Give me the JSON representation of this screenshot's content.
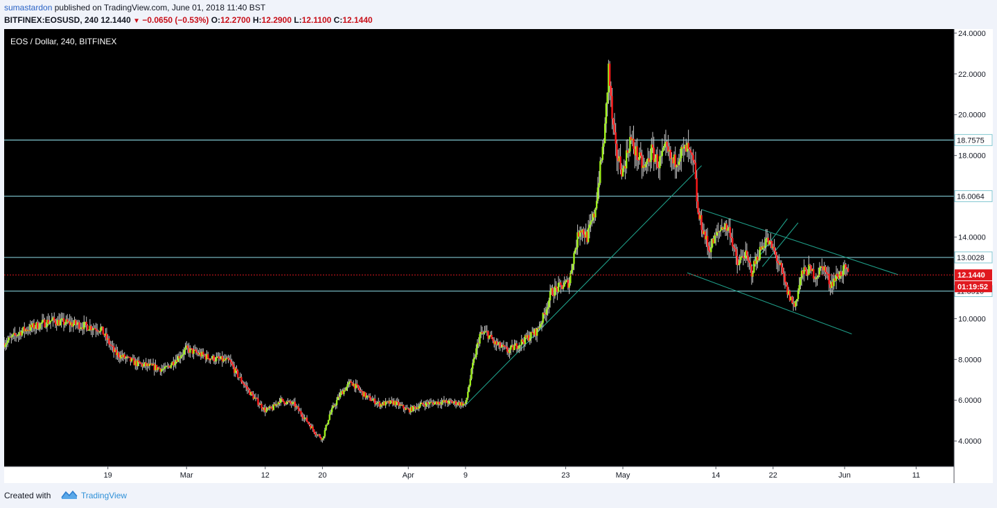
{
  "header": {
    "author": "sumastardon",
    "published_text": "published on TradingView.com, June 01, 2018 11:40 BST",
    "symbol": "BITFINEX:EOSUSD, 240",
    "last": "12.1440",
    "change": "−0.0650 (−0.53%)",
    "open_label": "O:",
    "open": "12.2700",
    "high_label": "H:",
    "high": "12.2900",
    "low_label": "L:",
    "low": "12.1100",
    "close_label": "C:",
    "close": "12.1440"
  },
  "footer": {
    "created_with": "Created with",
    "brand": "TradingView"
  },
  "chart_data": {
    "type": "candlestick",
    "title": "EOS / Dollar, 240, BITFINEX",
    "ylim": [
      2.75,
      24.2
    ],
    "y_ticks": [
      "24.0000",
      "22.0000",
      "20.0000",
      "18.0000",
      "16.0000",
      "14.0000",
      "10.0000",
      "8.0000",
      "6.0000",
      "4.0000"
    ],
    "x_ticks": [
      "19",
      "Mar",
      "12",
      "20",
      "Apr",
      "9",
      "23",
      "May",
      "14",
      "22",
      "Jun",
      "11"
    ],
    "x_tick_days": [
      -11,
      0,
      11,
      19,
      31,
      39,
      53,
      61,
      74,
      82,
      92,
      102
    ],
    "xlim_days": [
      -25.5,
      107.3
    ],
    "anchor_points": [
      [
        -25.5,
        8.8
      ],
      [
        -23,
        9.4
      ],
      [
        -19,
        9.9
      ],
      [
        -15,
        9.7
      ],
      [
        -12,
        9.5
      ],
      [
        -10,
        8.3
      ],
      [
        -7,
        7.8
      ],
      [
        -3,
        7.5
      ],
      [
        0,
        8.5
      ],
      [
        3,
        8.1
      ],
      [
        6,
        7.9
      ],
      [
        7,
        7.3
      ],
      [
        9,
        6.3
      ],
      [
        11,
        5.5
      ],
      [
        12,
        5.6
      ],
      [
        13,
        6.0
      ],
      [
        15,
        5.8
      ],
      [
        17,
        4.9
      ],
      [
        18,
        4.4
      ],
      [
        19,
        4.1
      ],
      [
        20,
        5.3
      ],
      [
        21.5,
        6.3
      ],
      [
        23,
        6.9
      ],
      [
        25,
        6.2
      ],
      [
        27,
        5.8
      ],
      [
        29,
        5.9
      ],
      [
        31,
        5.5
      ],
      [
        33,
        5.8
      ],
      [
        35,
        5.9
      ],
      [
        37,
        5.9
      ],
      [
        39,
        5.8
      ],
      [
        40,
        7.7
      ],
      [
        41,
        9.2
      ],
      [
        42,
        9.3
      ],
      [
        43,
        8.8
      ],
      [
        45,
        8.4
      ],
      [
        47,
        8.9
      ],
      [
        49,
        9.4
      ],
      [
        50,
        10.2
      ],
      [
        51,
        11.3
      ],
      [
        52.5,
        11.6
      ],
      [
        53.5,
        11.8
      ],
      [
        54,
        12.9
      ],
      [
        55,
        14.5
      ],
      [
        56,
        14.0
      ],
      [
        57,
        15.1
      ],
      [
        58,
        17.8
      ],
      [
        58.5,
        19.3
      ],
      [
        59,
        22.3
      ],
      [
        59.5,
        19.8
      ],
      [
        60,
        18.2
      ],
      [
        61,
        17.2
      ],
      [
        62,
        18.8
      ],
      [
        63,
        18.0
      ],
      [
        64,
        17.3
      ],
      [
        65,
        18.2
      ],
      [
        66,
        17.6
      ],
      [
        67,
        18.3
      ],
      [
        68,
        17.6
      ],
      [
        69,
        18.1
      ],
      [
        70,
        18.3
      ],
      [
        71,
        17.4
      ],
      [
        71.5,
        15.1
      ],
      [
        72,
        14.6
      ],
      [
        73,
        13.4
      ],
      [
        74,
        14.0
      ],
      [
        75,
        14.6
      ],
      [
        76,
        14.3
      ],
      [
        77,
        12.6
      ],
      [
        78,
        13.2
      ],
      [
        79,
        12.3
      ],
      [
        80,
        13.2
      ],
      [
        81,
        13.9
      ],
      [
        82,
        13.4
      ],
      [
        83,
        12.5
      ],
      [
        84,
        11.3
      ],
      [
        85,
        10.6
      ],
      [
        86,
        12.2
      ],
      [
        87,
        12.4
      ],
      [
        88,
        12.1
      ],
      [
        89,
        12.6
      ],
      [
        90,
        11.7
      ],
      [
        91,
        12.1
      ],
      [
        92,
        12.4
      ],
      [
        92.5,
        12.14
      ]
    ],
    "horizontal_levels": [
      {
        "value": 18.7575,
        "label": "18.7575"
      },
      {
        "value": 16.0064,
        "label": "16.0064"
      },
      {
        "value": 13.0028,
        "label": "13.0028"
      },
      {
        "value": 11.3516,
        "label": "11.3516"
      }
    ],
    "trendlines": [
      [
        [
          39,
          5.75
        ],
        [
          72,
          17.5
        ]
      ],
      [
        [
          72,
          15.35
        ],
        [
          99.5,
          12.15
        ]
      ],
      [
        [
          70,
          12.25
        ],
        [
          93,
          9.25
        ]
      ],
      [
        [
          79,
          12.55
        ],
        [
          84,
          14.9
        ]
      ],
      [
        [
          80.5,
          12.55
        ],
        [
          85.5,
          14.7
        ]
      ]
    ],
    "last_price": 12.144,
    "last_price_label": "12.1440",
    "countdown": "01:19:52",
    "colors": {
      "background": "#000000",
      "up": "#9ef01a",
      "down": "#ff1a1a",
      "wick": "#c8c8c8",
      "levels": "#7fc6d0",
      "trendline": "#1fa08a",
      "last_price": "#e0181e"
    }
  }
}
